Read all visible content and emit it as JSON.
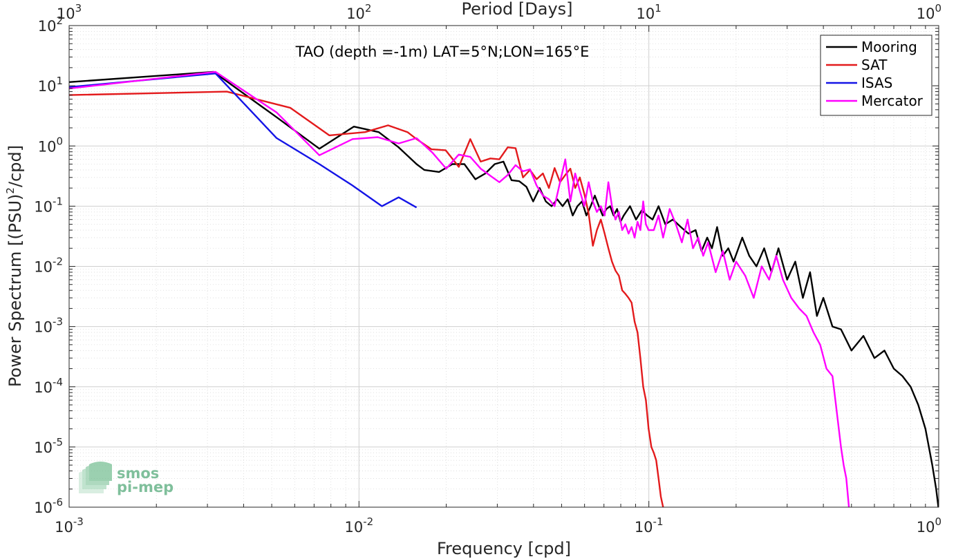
{
  "chart_data": {
    "type": "line",
    "title": "",
    "annotation": "TAO (depth =-1m) LAT=5°N;LON=165°E",
    "xlabel": "Frequency [cpd]",
    "ylabel": "Power Spectrum [(PSU)",
    "ylabel_sup": "2",
    "ylabel_tail": "/cpd]",
    "top_xlabel": "Period [Days]",
    "xscale": "log",
    "yscale": "log",
    "xlim": [
      0.001,
      1
    ],
    "ylim": [
      1e-06,
      100
    ],
    "grid": true,
    "legend_position": "top-right",
    "x_ticks": [
      {
        "value": 0.001,
        "base": "10",
        "exp": "-3"
      },
      {
        "value": 0.01,
        "base": "10",
        "exp": "-2"
      },
      {
        "value": 0.1,
        "base": "10",
        "exp": "-1"
      },
      {
        "value": 1,
        "base": "10",
        "exp": "0"
      }
    ],
    "top_ticks": [
      {
        "value": 0.001,
        "base": "10",
        "exp": "3"
      },
      {
        "value": 0.01,
        "base": "10",
        "exp": "2"
      },
      {
        "value": 0.1,
        "base": "10",
        "exp": "1"
      },
      {
        "value": 1,
        "base": "10",
        "exp": "0"
      }
    ],
    "y_ticks": [
      {
        "value": 100,
        "base": "10",
        "exp": "2"
      },
      {
        "value": 10,
        "base": "10",
        "exp": "1"
      },
      {
        "value": 1,
        "base": "10",
        "exp": "0"
      },
      {
        "value": 0.1,
        "base": "10",
        "exp": "-1"
      },
      {
        "value": 0.01,
        "base": "10",
        "exp": "-2"
      },
      {
        "value": 0.001,
        "base": "10",
        "exp": "-3"
      },
      {
        "value": 0.0001,
        "base": "10",
        "exp": "-4"
      },
      {
        "value": 1e-05,
        "base": "10",
        "exp": "-5"
      },
      {
        "value": 1e-06,
        "base": "10",
        "exp": "-6"
      }
    ],
    "series": [
      {
        "name": "Mooring",
        "color": "#000000",
        "points": [
          [
            0.001,
            11.5
          ],
          [
            0.00315,
            17
          ],
          [
            0.0052,
            3
          ],
          [
            0.0073,
            0.9
          ],
          [
            0.0096,
            2.1
          ],
          [
            0.0117,
            1.7
          ],
          [
            0.0137,
            0.95
          ],
          [
            0.0158,
            0.5
          ],
          [
            0.0168,
            0.4
          ],
          [
            0.0189,
            0.37
          ],
          [
            0.021,
            0.5
          ],
          [
            0.0231,
            0.5
          ],
          [
            0.0252,
            0.28
          ],
          [
            0.0273,
            0.35
          ],
          [
            0.0294,
            0.5
          ],
          [
            0.0315,
            0.55
          ],
          [
            0.0336,
            0.27
          ],
          [
            0.0357,
            0.26
          ],
          [
            0.0378,
            0.21
          ],
          [
            0.0399,
            0.12
          ],
          [
            0.042,
            0.2
          ],
          [
            0.0441,
            0.12
          ],
          [
            0.0462,
            0.1
          ],
          [
            0.0483,
            0.13
          ],
          [
            0.0504,
            0.1
          ],
          [
            0.0525,
            0.13
          ],
          [
            0.0546,
            0.07
          ],
          [
            0.0567,
            0.1
          ],
          [
            0.0588,
            0.12
          ],
          [
            0.0609,
            0.07
          ],
          [
            0.063,
            0.1
          ],
          [
            0.0651,
            0.15
          ],
          [
            0.0672,
            0.1
          ],
          [
            0.0693,
            0.07
          ],
          [
            0.0714,
            0.09
          ],
          [
            0.0735,
            0.1
          ],
          [
            0.0756,
            0.07
          ],
          [
            0.0777,
            0.09
          ],
          [
            0.0798,
            0.055
          ],
          [
            0.0819,
            0.07
          ],
          [
            0.0861,
            0.1
          ],
          [
            0.0903,
            0.06
          ],
          [
            0.0945,
            0.085
          ],
          [
            0.0987,
            0.07
          ],
          [
            0.103,
            0.06
          ],
          [
            0.108,
            0.1
          ],
          [
            0.114,
            0.05
          ],
          [
            0.121,
            0.06
          ],
          [
            0.129,
            0.045
          ],
          [
            0.137,
            0.035
          ],
          [
            0.145,
            0.04
          ],
          [
            0.152,
            0.018
          ],
          [
            0.159,
            0.03
          ],
          [
            0.165,
            0.02
          ],
          [
            0.172,
            0.045
          ],
          [
            0.18,
            0.015
          ],
          [
            0.188,
            0.02
          ],
          [
            0.196,
            0.012
          ],
          [
            0.21,
            0.03
          ],
          [
            0.222,
            0.015
          ],
          [
            0.235,
            0.01
          ],
          [
            0.25,
            0.02
          ],
          [
            0.265,
            0.008
          ],
          [
            0.28,
            0.02
          ],
          [
            0.3,
            0.006
          ],
          [
            0.32,
            0.012
          ],
          [
            0.34,
            0.003
          ],
          [
            0.36,
            0.008
          ],
          [
            0.38,
            0.0015
          ],
          [
            0.4,
            0.003
          ],
          [
            0.43,
            0.001
          ],
          [
            0.46,
            0.0009
          ],
          [
            0.5,
            0.0004
          ],
          [
            0.55,
            0.0007
          ],
          [
            0.6,
            0.0003
          ],
          [
            0.65,
            0.0004
          ],
          [
            0.7,
            0.0002
          ],
          [
            0.75,
            0.00015
          ],
          [
            0.8,
            0.0001
          ],
          [
            0.85,
            5e-05
          ],
          [
            0.9,
            2e-05
          ],
          [
            0.95,
            5e-06
          ],
          [
            0.98,
            2e-06
          ],
          [
            1.0,
            9e-07
          ]
        ]
      },
      {
        "name": "SAT",
        "color": "#e31a1c",
        "points": [
          [
            0.001,
            7
          ],
          [
            0.0035,
            8
          ],
          [
            0.0058,
            4.3
          ],
          [
            0.0079,
            1.5
          ],
          [
            0.0105,
            1.7
          ],
          [
            0.0126,
            2.2
          ],
          [
            0.0147,
            1.7
          ],
          [
            0.0158,
            1.3
          ],
          [
            0.0178,
            0.88
          ],
          [
            0.0199,
            0.85
          ],
          [
            0.0221,
            0.45
          ],
          [
            0.0242,
            1.3
          ],
          [
            0.0263,
            0.55
          ],
          [
            0.0284,
            0.62
          ],
          [
            0.0305,
            0.6
          ],
          [
            0.0326,
            0.95
          ],
          [
            0.0347,
            0.92
          ],
          [
            0.0368,
            0.3
          ],
          [
            0.0389,
            0.4
          ],
          [
            0.041,
            0.28
          ],
          [
            0.0431,
            0.35
          ],
          [
            0.0452,
            0.2
          ],
          [
            0.0473,
            0.43
          ],
          [
            0.0494,
            0.25
          ],
          [
            0.0515,
            0.33
          ],
          [
            0.0536,
            0.42
          ],
          [
            0.0557,
            0.2
          ],
          [
            0.0578,
            0.3
          ],
          [
            0.0599,
            0.16
          ],
          [
            0.062,
            0.075
          ],
          [
            0.0641,
            0.022
          ],
          [
            0.0662,
            0.04
          ],
          [
            0.0683,
            0.06
          ],
          [
            0.0704,
            0.035
          ],
          [
            0.0725,
            0.02
          ],
          [
            0.0746,
            0.012
          ],
          [
            0.0767,
            0.0085
          ],
          [
            0.0788,
            0.007
          ],
          [
            0.0809,
            0.004
          ],
          [
            0.083,
            0.0035
          ],
          [
            0.0851,
            0.003
          ],
          [
            0.0872,
            0.0025
          ],
          [
            0.0893,
            0.0012
          ],
          [
            0.0914,
            0.0008
          ],
          [
            0.0935,
            0.0003
          ],
          [
            0.0956,
            0.0001
          ],
          [
            0.0977,
            6e-05
          ],
          [
            0.0998,
            2e-05
          ],
          [
            0.102,
            1e-05
          ],
          [
            0.104,
            8e-06
          ],
          [
            0.106,
            6e-06
          ],
          [
            0.108,
            3e-06
          ],
          [
            0.11,
            1.5e-06
          ],
          [
            0.112,
            1e-06
          ]
        ]
      },
      {
        "name": "ISAS",
        "color": "#1414e6",
        "points": [
          [
            0.001,
            9.5
          ],
          [
            0.0032,
            16
          ],
          [
            0.0052,
            1.35
          ],
          [
            0.0073,
            0.5
          ],
          [
            0.0095,
            0.22
          ],
          [
            0.012,
            0.1
          ],
          [
            0.0137,
            0.14
          ],
          [
            0.0158,
            0.095
          ]
        ]
      },
      {
        "name": "Mercator",
        "color": "#ff00ff",
        "points": [
          [
            0.001,
            9
          ],
          [
            0.0032,
            17
          ],
          [
            0.0052,
            3.6
          ],
          [
            0.0073,
            0.7
          ],
          [
            0.0095,
            1.3
          ],
          [
            0.0116,
            1.4
          ],
          [
            0.0137,
            1.1
          ],
          [
            0.0158,
            1.35
          ],
          [
            0.0179,
            0.78
          ],
          [
            0.02,
            0.42
          ],
          [
            0.0221,
            0.72
          ],
          [
            0.0242,
            0.66
          ],
          [
            0.0263,
            0.42
          ],
          [
            0.0284,
            0.32
          ],
          [
            0.0305,
            0.25
          ],
          [
            0.0326,
            0.33
          ],
          [
            0.0347,
            0.48
          ],
          [
            0.0368,
            0.38
          ],
          [
            0.0389,
            0.41
          ],
          [
            0.041,
            0.22
          ],
          [
            0.0431,
            0.15
          ],
          [
            0.0452,
            0.13
          ],
          [
            0.0473,
            0.1
          ],
          [
            0.0494,
            0.25
          ],
          [
            0.0515,
            0.6
          ],
          [
            0.0536,
            0.12
          ],
          [
            0.0557,
            0.35
          ],
          [
            0.0578,
            0.18
          ],
          [
            0.0599,
            0.1
          ],
          [
            0.062,
            0.25
          ],
          [
            0.0641,
            0.12
          ],
          [
            0.0662,
            0.08
          ],
          [
            0.0683,
            0.1
          ],
          [
            0.0704,
            0.07
          ],
          [
            0.0725,
            0.25
          ],
          [
            0.0746,
            0.1
          ],
          [
            0.0767,
            0.06
          ],
          [
            0.0788,
            0.08
          ],
          [
            0.0809,
            0.04
          ],
          [
            0.083,
            0.05
          ],
          [
            0.0851,
            0.035
          ],
          [
            0.0872,
            0.045
          ],
          [
            0.0893,
            0.03
          ],
          [
            0.0914,
            0.055
          ],
          [
            0.0935,
            0.04
          ],
          [
            0.0956,
            0.12
          ],
          [
            0.0977,
            0.05
          ],
          [
            0.0998,
            0.04
          ],
          [
            0.104,
            0.04
          ],
          [
            0.108,
            0.07
          ],
          [
            0.112,
            0.03
          ],
          [
            0.118,
            0.09
          ],
          [
            0.124,
            0.05
          ],
          [
            0.13,
            0.025
          ],
          [
            0.136,
            0.06
          ],
          [
            0.142,
            0.02
          ],
          [
            0.148,
            0.03
          ],
          [
            0.154,
            0.015
          ],
          [
            0.16,
            0.025
          ],
          [
            0.17,
            0.008
          ],
          [
            0.18,
            0.018
          ],
          [
            0.19,
            0.006
          ],
          [
            0.2,
            0.012
          ],
          [
            0.215,
            0.007
          ],
          [
            0.23,
            0.003
          ],
          [
            0.245,
            0.01
          ],
          [
            0.26,
            0.006
          ],
          [
            0.275,
            0.015
          ],
          [
            0.29,
            0.006
          ],
          [
            0.31,
            0.003
          ],
          [
            0.33,
            0.002
          ],
          [
            0.35,
            0.0015
          ],
          [
            0.37,
            0.0008
          ],
          [
            0.39,
            0.0005
          ],
          [
            0.41,
            0.0002
          ],
          [
            0.43,
            0.00015
          ],
          [
            0.44,
            6e-05
          ],
          [
            0.46,
            1e-05
          ],
          [
            0.47,
            5e-06
          ],
          [
            0.48,
            3e-06
          ],
          [
            0.49,
            1e-06
          ]
        ]
      }
    ]
  },
  "logo": {
    "line1": "smos",
    "line2": "pi-mep"
  }
}
